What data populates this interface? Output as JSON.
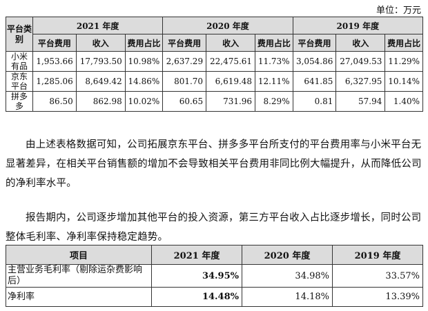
{
  "unit": "单位：万元",
  "table1": {
    "corner": "平台类别",
    "years": [
      "2021 年度",
      "2020 年度",
      "2019 年度"
    ],
    "subheaders": [
      "平台费用",
      "收入",
      "费用占比"
    ],
    "rows": [
      {
        "label": "小米有品",
        "cells": [
          "1,953.66",
          "17,793.50",
          "10.98%",
          "2,637.29",
          "22,475.61",
          "11.73%",
          "3,054.86",
          "27,049.53",
          "11.29%"
        ]
      },
      {
        "label": "京东平台",
        "cells": [
          "1,285.06",
          "8,649.42",
          "14.86%",
          "801.70",
          "6,619.48",
          "12.11%",
          "641.85",
          "6,327.95",
          "10.14%"
        ]
      },
      {
        "label": "拼多多",
        "cells": [
          "86.50",
          "862.98",
          "10.02%",
          "60.65",
          "731.96",
          "8.29%",
          "0.81",
          "57.94",
          "1.40%"
        ]
      }
    ]
  },
  "paragraphs": [
    "由上述表格数据可知，公司拓展京东平台、拼多多平台所支付的平台费用率与小米平台无显著差异，在相关平台销售额的增加不会导致相关平台费用非同比例大幅提升，从而降低公司的净利率水平。",
    "报告期内，公司逐步增加其他平台的投入资源，第三方平台收入占比逐步增长，同时公司整体毛利率、净利率保持稳定趋势。"
  ],
  "table2": {
    "headers": [
      "项目",
      "2021 年度",
      "2020 年度",
      "2019 年度"
    ],
    "rows": [
      {
        "label": "主营业务毛利率（剔除运杂费影响后）",
        "cells": [
          "34.95%",
          "34.98%",
          "33.57%"
        ]
      },
      {
        "label": "净利率",
        "cells": [
          "14.48%",
          "14.18%",
          "13.39%"
        ]
      }
    ]
  }
}
